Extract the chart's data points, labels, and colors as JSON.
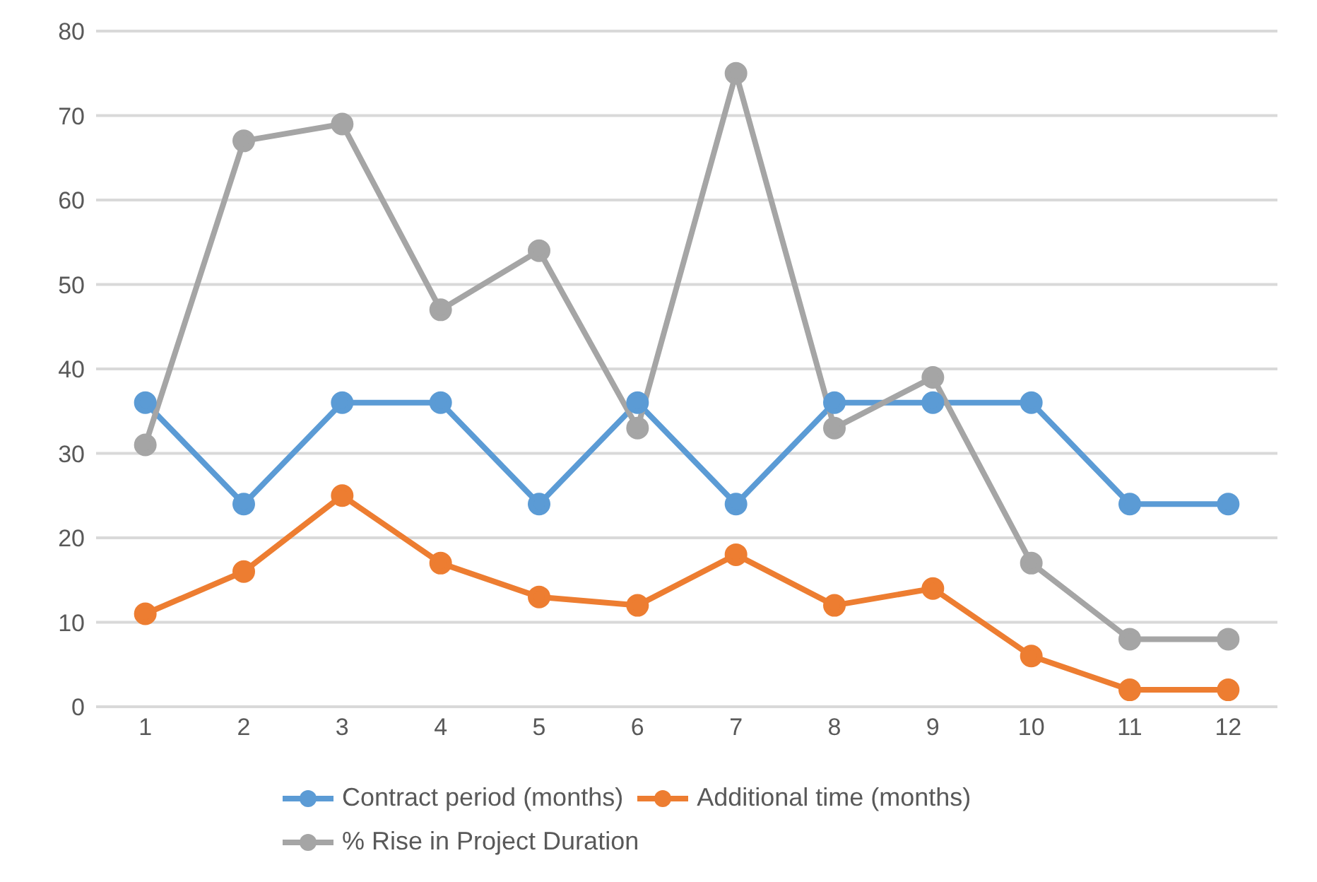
{
  "chart_data": {
    "type": "line",
    "x": [
      1,
      2,
      3,
      4,
      5,
      6,
      7,
      8,
      9,
      10,
      11,
      12
    ],
    "xlim": [
      0.5,
      12.5
    ],
    "xticks": [
      1,
      2,
      3,
      4,
      5,
      6,
      7,
      8,
      9,
      10,
      11,
      12
    ],
    "series": [
      {
        "name": "Contract period (months)",
        "color": "#5b9bd5",
        "values": [
          36,
          24,
          36,
          36,
          24,
          36,
          24,
          36,
          36,
          36,
          24,
          24
        ]
      },
      {
        "name": "Additional time (months)",
        "color": "#ed7d31",
        "values": [
          11,
          16,
          25,
          17,
          13,
          12,
          18,
          12,
          14,
          6,
          2,
          2
        ]
      },
      {
        "name": "% Rise in Project Duration",
        "color": "#a5a5a5",
        "values": [
          31,
          67,
          69,
          47,
          54,
          33,
          75,
          33,
          39,
          17,
          8,
          8
        ]
      }
    ],
    "ylim": [
      0,
      80
    ],
    "yticks": [
      0,
      10,
      20,
      30,
      40,
      50,
      60,
      70,
      80
    ],
    "grid": "y",
    "legend": "bottom",
    "marker": "circle",
    "line_style": "solid"
  }
}
